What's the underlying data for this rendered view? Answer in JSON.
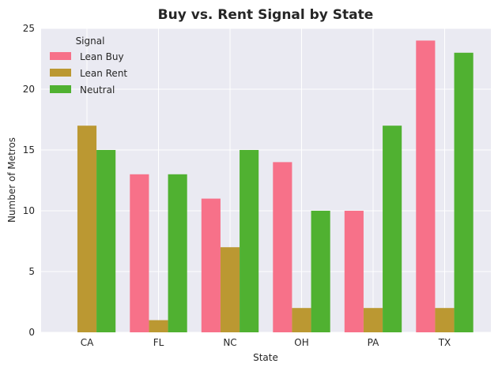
{
  "chart_data": {
    "type": "bar",
    "title": "Buy vs. Rent Signal by State",
    "xlabel": "State",
    "ylabel": "Number of Metros",
    "categories": [
      "CA",
      "FL",
      "NC",
      "OH",
      "PA",
      "TX"
    ],
    "ylim": [
      0,
      25
    ],
    "yticks": [
      0,
      5,
      10,
      15,
      20,
      25
    ],
    "grid": true,
    "legend": {
      "title": "Signal",
      "placement": "top-left"
    },
    "series": [
      {
        "name": "Lean Buy",
        "color": "#f77189",
        "values": [
          0,
          13,
          11,
          14,
          10,
          24
        ]
      },
      {
        "name": "Lean Rent",
        "color": "#bb9832",
        "values": [
          17,
          1,
          7,
          2,
          2,
          2
        ]
      },
      {
        "name": "Neutral",
        "color": "#50b131",
        "values": [
          15,
          13,
          15,
          10,
          17,
          23
        ]
      }
    ]
  }
}
